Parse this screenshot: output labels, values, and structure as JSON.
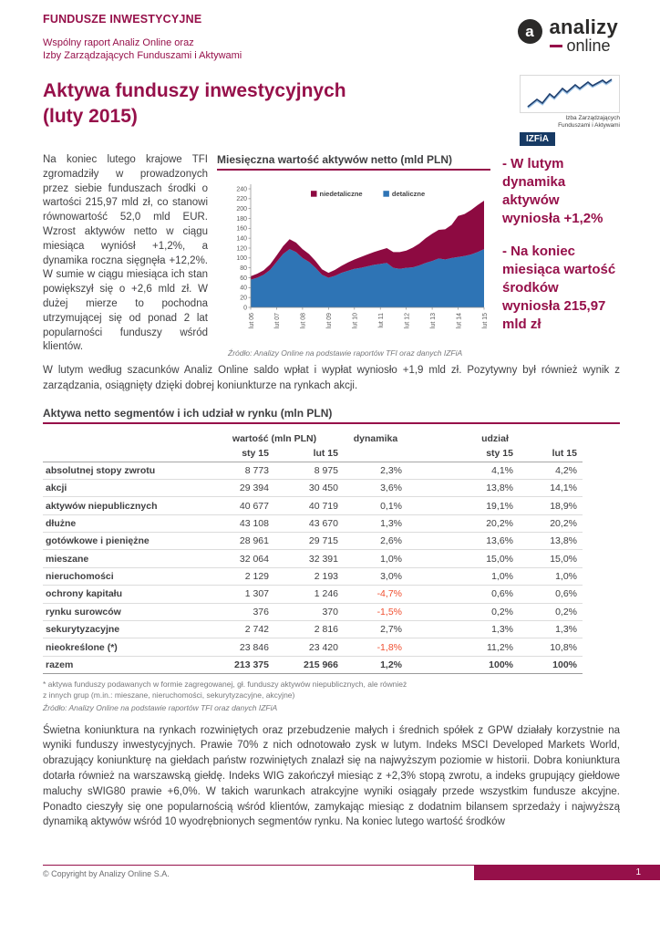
{
  "brand": {
    "kicker": "FUNDUSZE INWESTYCYJNE",
    "subtitle1": "Wspólny raport Analiz Online oraz",
    "subtitle2": "Izby Zarządzających Funduszami i Aktywami",
    "logo": {
      "mark": "a",
      "word1": "analizy",
      "word2": "online"
    }
  },
  "title": {
    "line1": "Aktywa funduszy inwestycyjnych",
    "line2": "(luty 2015)"
  },
  "izfia": {
    "caption1": "Izba Zarządzających",
    "caption2": "Funduszami i Aktywami",
    "label": "IZFiA"
  },
  "intro": "Na koniec lutego krajowe TFI zgromadziły w prowadzonych przez siebie funduszach środki o wartości 215,97 mld zł, co stanowi równowartość 52,0 mld EUR. Wzrost aktywów netto w ciągu miesiąca wyniósł +1,2%, a dynamika roczna sięgnęła +12,2%. W sumie w ciągu miesiąca ich stan powiększył się o +2,6 mld zł. W dużej mierze to pochodna utrzymującej się od ponad 2 lat popularności funduszy wśród klientów.",
  "callouts": [
    "- W lutym dynamika aktywów wyniosła +1,2%",
    "- Na koniec miesiąca wartość środków wyniosła 215,97 mld zł"
  ],
  "mid_paragraph": "W lutym według szacunków Analiz Online saldo wpłat i wypłat wyniosło +1,9 mld zł. Pozytywny był również wynik z zarządzania, osiągnięty dzięki dobrej koniunkturze na rynkach akcji.",
  "chart_data": {
    "type": "area",
    "stacked": true,
    "title": "Miesięczna wartość aktywów netto (mld PLN)",
    "ylim": [
      0,
      240
    ],
    "ytick_step": 20,
    "x_tick_labels": [
      "lut 06",
      "lut 07",
      "lut 08",
      "lut 09",
      "lut 10",
      "lut 11",
      "lut 12",
      "lut 13",
      "lut 14",
      "lut 15"
    ],
    "points_per_year": 4,
    "legend": [
      "niedetaliczne",
      "detaliczne"
    ],
    "legend_position": "top-center",
    "grid": false,
    "series": [
      {
        "name": "detaliczne",
        "color": "#2e74b5",
        "values": [
          56,
          60,
          66,
          76,
          92,
          108,
          118,
          112,
          100,
          92,
          80,
          66,
          60,
          64,
          70,
          74,
          78,
          80,
          83,
          86,
          88,
          90,
          80,
          78,
          80,
          81,
          85,
          90,
          94,
          99,
          97,
          100,
          102,
          104,
          107,
          112,
          118
        ]
      },
      {
        "name": "niedetaliczne",
        "color": "#8d0a41",
        "values": [
          7,
          8,
          9,
          11,
          13,
          16,
          20,
          19,
          18,
          16,
          14,
          11,
          10,
          12,
          14,
          17,
          19,
          22,
          24,
          26,
          28,
          30,
          32,
          34,
          35,
          40,
          44,
          50,
          55,
          58,
          61,
          67,
          83,
          85,
          90,
          95,
          98
        ]
      }
    ],
    "source": "Źródło: Analizy Online na podstawie raportów TFI oraz danych IZFiA"
  },
  "table": {
    "title": "Aktywa netto segmentów i ich udział w rynku (mln PLN)",
    "col_groups": [
      "wartość (mln PLN)",
      "dynamika",
      "udział"
    ],
    "subheaders": [
      "sty 15",
      "lut 15",
      "sty 15",
      "lut 15"
    ],
    "rows": [
      {
        "name": "absolutnej stopy zwrotu",
        "sty": "8 773",
        "lut": "8 975",
        "dyn": "2,3%",
        "u_sty": "4,1%",
        "u_lut": "4,2%"
      },
      {
        "name": "akcji",
        "sty": "29 394",
        "lut": "30 450",
        "dyn": "3,6%",
        "u_sty": "13,8%",
        "u_lut": "14,1%"
      },
      {
        "name": "aktywów niepublicznych",
        "sty": "40 677",
        "lut": "40 719",
        "dyn": "0,1%",
        "u_sty": "19,1%",
        "u_lut": "18,9%"
      },
      {
        "name": "dłużne",
        "sty": "43 108",
        "lut": "43 670",
        "dyn": "1,3%",
        "u_sty": "20,2%",
        "u_lut": "20,2%"
      },
      {
        "name": "gotówkowe i pieniężne",
        "sty": "28 961",
        "lut": "29 715",
        "dyn": "2,6%",
        "u_sty": "13,6%",
        "u_lut": "13,8%"
      },
      {
        "name": "mieszane",
        "sty": "32 064",
        "lut": "32 391",
        "dyn": "1,0%",
        "u_sty": "15,0%",
        "u_lut": "15,0%"
      },
      {
        "name": "nieruchomości",
        "sty": "2 129",
        "lut": "2 193",
        "dyn": "3,0%",
        "u_sty": "1,0%",
        "u_lut": "1,0%"
      },
      {
        "name": "ochrony kapitału",
        "sty": "1 307",
        "lut": "1 246",
        "dyn": "-4,7%",
        "u_sty": "0,6%",
        "u_lut": "0,6%"
      },
      {
        "name": "rynku surowców",
        "sty": "376",
        "lut": "370",
        "dyn": "-1,5%",
        "u_sty": "0,2%",
        "u_lut": "0,2%"
      },
      {
        "name": "sekurytyzacyjne",
        "sty": "2 742",
        "lut": "2 816",
        "dyn": "2,7%",
        "u_sty": "1,3%",
        "u_lut": "1,3%"
      },
      {
        "name": "nieokreślone (*)",
        "sty": "23 846",
        "lut": "23 420",
        "dyn": "-1,8%",
        "u_sty": "11,2%",
        "u_lut": "10,8%"
      },
      {
        "name": "razem",
        "sty": "213 375",
        "lut": "215 966",
        "dyn": "1,2%",
        "u_sty": "100%",
        "u_lut": "100%",
        "total": true
      }
    ],
    "footnote1": "* aktywa funduszy podawanych w formie zagregowanej, gł. funduszy aktywów niepublicznych, ale również",
    "footnote2": "z innych grup (m.in.: mieszane, nieruchomości, sekurytyzacyjne, akcyjne)",
    "source": "Źródło: Analizy Online na podstawie raportów TFI oraz danych IZFiA"
  },
  "bottom_paragraph": "Świetna koniunktura na rynkach rozwiniętych oraz przebudzenie małych i średnich spółek z GPW działały korzystnie na wyniki funduszy inwestycyjnych. Prawie 70% z nich odnotowało zysk w lutym. Indeks MSCI Developed Markets World, obrazujący koniunkturę na giełdach państw rozwiniętych znalazł się na najwyższym poziomie w historii. Dobra koniunktura dotarła również na warszawską giełdę. Indeks WIG zakończył miesiąc z +2,3% stopą zwrotu, a indeks grupujący giełdowe maluchy sWIG80 prawie +6,0%. W takich warunkach atrakcyjne wyniki osiągały przede wszystkim fundusze akcyjne. Ponadto cieszyły się one popularnością wśród klientów, zamykając miesiąc z dodatnim bilansem sprzedaży i najwyższą dynamiką aktywów wśród 10 wyodrębnionych segmentów rynku. Na koniec lutego wartość środków",
  "footer": {
    "copyright": "© Copyright by Analizy Online S.A.",
    "page": "1"
  },
  "colors": {
    "maroon": "#96104a",
    "chart_red": "#8d0a41",
    "chart_blue": "#2e74b5",
    "negative": "#f04f30"
  }
}
